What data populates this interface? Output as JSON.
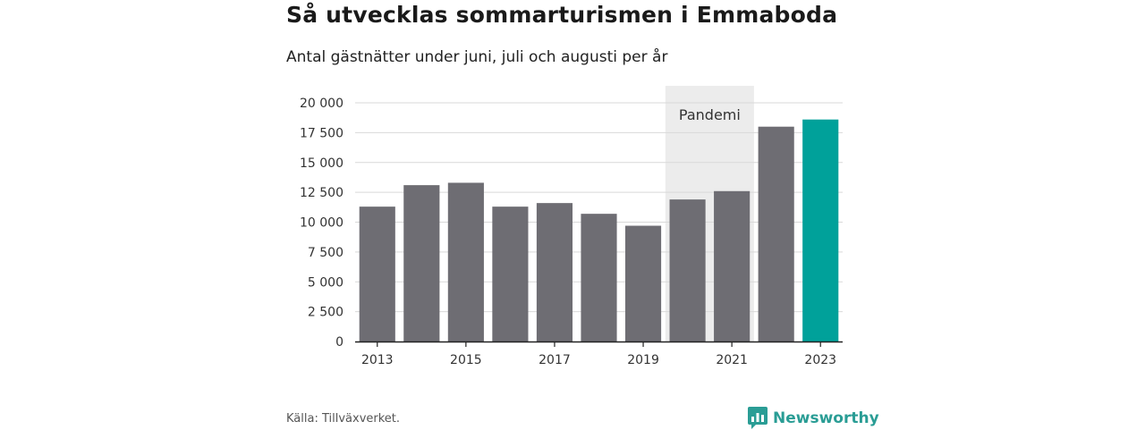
{
  "title": "Så utvecklas sommarturismen i Emmaboda",
  "subtitle": "Antal gästnätter under juni, juli och augusti per år",
  "source": "Källa: Tillväxverket.",
  "brand": "Newsworthy",
  "colors": {
    "bar": "#6e6d73",
    "highlight": "#00a19a",
    "shade": "#ececec",
    "grid": "#d9d9d9",
    "brand": "#2a9d95"
  },
  "chart_data": {
    "type": "bar",
    "categories": [
      "2013",
      "2014",
      "2015",
      "2016",
      "2017",
      "2018",
      "2019",
      "2020",
      "2021",
      "2022",
      "2023"
    ],
    "values": [
      11300,
      13100,
      13300,
      11300,
      11600,
      10700,
      9700,
      11900,
      12600,
      18000,
      18600
    ],
    "highlight_index": 10,
    "x_tick_labels": [
      "2013",
      "2015",
      "2017",
      "2019",
      "2021",
      "2023"
    ],
    "y_ticks": [
      0,
      2500,
      5000,
      7500,
      10000,
      12500,
      15000,
      17500,
      20000
    ],
    "y_tick_labels": [
      "0",
      "2 500",
      "5 000",
      "7 500",
      "10 000",
      "12 500",
      "15 000",
      "17 500",
      "20 000"
    ],
    "ylim": [
      0,
      20000
    ],
    "grid": true,
    "annotation": {
      "label": "Pandemi",
      "from": "2020",
      "to": "2021"
    }
  }
}
